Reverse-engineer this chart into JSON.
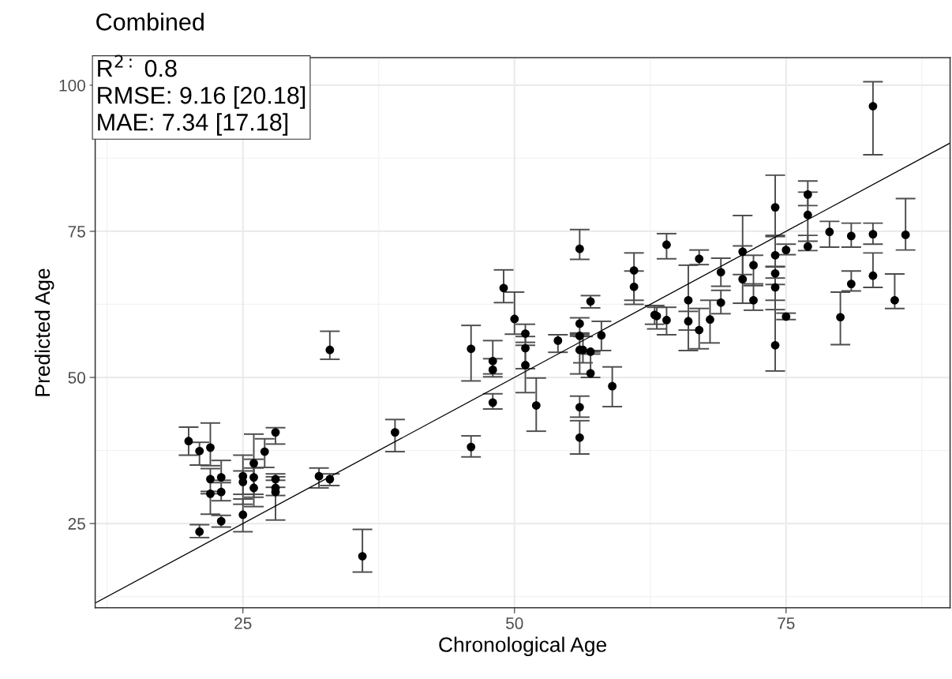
{
  "chart_data": {
    "type": "scatter",
    "title": "Combined",
    "xlabel": "Chronological Age",
    "ylabel": "Predicted Age",
    "annotations": [
      "R$^{2:}$ 0.8",
      "RMSE: 9.16 [20.18]",
      "MAE: 7.34 [17.18]"
    ],
    "xlim": [
      11.4,
      90.1
    ],
    "ylim": [
      10.6,
      104.7
    ],
    "xticks": [
      25,
      50,
      75
    ],
    "yticks": [
      25,
      50,
      75,
      100
    ],
    "grid": true,
    "series": [
      {
        "color": "#000000",
        "marker": "circle",
        "x": [
          20,
          21,
          22,
          22,
          22,
          23,
          23,
          23,
          21,
          25,
          25,
          25,
          26,
          26,
          26,
          28,
          27,
          28,
          28,
          28,
          32,
          33,
          39,
          36,
          33,
          46,
          48,
          48,
          48,
          46,
          50,
          49,
          56,
          57,
          51,
          51,
          51,
          52,
          54,
          56,
          56,
          56,
          56.3,
          57,
          57,
          58,
          56,
          56,
          59,
          61,
          61,
          64,
          62.9,
          63.1,
          64,
          66,
          66,
          67,
          67,
          68,
          69,
          69,
          71,
          71,
          72,
          72,
          74,
          74,
          74,
          74,
          74,
          75,
          75,
          77,
          77,
          77,
          79,
          81,
          83,
          86,
          81,
          83,
          85,
          80,
          83
        ],
        "values": [
          39.1,
          37.4,
          38.0,
          32.6,
          30.1,
          32.9,
          30.4,
          25.4,
          23.6,
          26.5,
          33.1,
          32.1,
          35.3,
          32.9,
          31.1,
          40.6,
          37.3,
          32.6,
          31.1,
          30.4,
          33.1,
          32.6,
          40.6,
          19.4,
          54.7,
          54.9,
          52.8,
          51.3,
          45.7,
          38.1,
          60.0,
          65.3,
          72.0,
          63.0,
          57.5,
          55.0,
          52.1,
          45.2,
          56.3,
          59.2,
          57.1,
          54.7,
          54.7,
          54.4,
          50.7,
          57.2,
          44.9,
          39.7,
          48.5,
          68.3,
          65.5,
          72.7,
          60.7,
          60.5,
          59.8,
          63.2,
          59.6,
          70.3,
          58.1,
          59.9,
          68.0,
          62.8,
          71.5,
          66.8,
          69.2,
          63.2,
          79.1,
          70.9,
          67.8,
          65.4,
          55.5,
          71.8,
          60.4,
          81.3,
          77.8,
          72.4,
          74.9,
          74.2,
          74.5,
          74.4,
          66.0,
          67.4,
          63.2,
          60.3,
          96.4
        ],
        "errors": [
          [
            36.7,
            41.5
          ],
          [
            35.0,
            38.9
          ],
          [
            34.9,
            42.2
          ],
          [
            30.5,
            34.4
          ],
          [
            26.6,
            30.1
          ],
          [
            32.4,
            35.8
          ],
          [
            28.9,
            32.0
          ],
          [
            24.4,
            26.4
          ],
          [
            22.6,
            24.8
          ],
          [
            23.6,
            29.2
          ],
          [
            30.0,
            36.7
          ],
          [
            28.3,
            34.0
          ],
          [
            30.0,
            40.3
          ],
          [
            29.5,
            36.0
          ],
          [
            27.9,
            34.5
          ],
          [
            38.6,
            41.4
          ],
          [
            34.6,
            39.5
          ],
          [
            31.2,
            33.5
          ],
          [
            29.8,
            32.4
          ],
          [
            25.6,
            33.0
          ],
          [
            31.1,
            34.5
          ],
          [
            31.5,
            33.5
          ],
          [
            37.3,
            42.8
          ],
          [
            16.7,
            24.0
          ],
          [
            53.1,
            57.9
          ],
          [
            49.4,
            58.9
          ],
          [
            50.6,
            56.3
          ],
          [
            50.1,
            53.2
          ],
          [
            44.6,
            47.2
          ],
          [
            36.4,
            40.0
          ],
          [
            57.4,
            64.6
          ],
          [
            62.8,
            68.4
          ],
          [
            70.2,
            75.3
          ],
          [
            61.9,
            64.0
          ],
          [
            56.0,
            59.1
          ],
          [
            51.5,
            57.0
          ],
          [
            47.4,
            55.5
          ],
          [
            40.8,
            49.9
          ],
          [
            54.3,
            57.3
          ],
          [
            57.6,
            60.2
          ],
          null,
          [
            50.6,
            57.4
          ],
          [
            52.5,
            57.0
          ],
          null,
          [
            50.0,
            54.0
          ],
          [
            54.6,
            59.6
          ],
          [
            43.2,
            46.8
          ],
          [
            36.9,
            42.6
          ],
          [
            45.0,
            51.8
          ],
          [
            63.2,
            71.3
          ],
          [
            62.5,
            68.2
          ],
          [
            70.3,
            74.6
          ],
          [
            59.1,
            62.3
          ],
          [
            58.3,
            62.0
          ],
          [
            57.3,
            62.0
          ],
          [
            54.6,
            69.2
          ],
          [
            58.1,
            61.3
          ],
          [
            69.3,
            71.8
          ],
          [
            54.9,
            61.8
          ],
          [
            55.9,
            63.2
          ],
          [
            65.6,
            70.4
          ],
          [
            60.9,
            64.9
          ],
          [
            67.6,
            77.7
          ],
          [
            62.7,
            72.5
          ],
          [
            65.7,
            70.9
          ],
          [
            61.5,
            66.0
          ],
          [
            74.1,
            84.6
          ],
          [
            68.9,
            74.3
          ],
          [
            65.9,
            69.0
          ],
          [
            61.6,
            67.0
          ],
          [
            51.1,
            63.2
          ],
          [
            71.0,
            72.8
          ],
          [
            59.9,
            61.0
          ],
          [
            79.4,
            83.6
          ],
          [
            73.3,
            81.7
          ],
          [
            71.7,
            74.3
          ],
          [
            72.3,
            76.7
          ],
          [
            72.3,
            76.4
          ],
          [
            72.8,
            76.4
          ],
          [
            71.8,
            80.6
          ],
          [
            64.8,
            68.2
          ],
          [
            65.4,
            71.3
          ],
          [
            61.8,
            67.7
          ],
          [
            55.6,
            64.6
          ],
          [
            88.1,
            100.6
          ]
        ]
      },
      {
        "type": "line",
        "color": "#000000",
        "line_style": "solid",
        "x": [
          11.4,
          90.1
        ],
        "values": [
          11.4,
          90.1
        ]
      }
    ]
  }
}
